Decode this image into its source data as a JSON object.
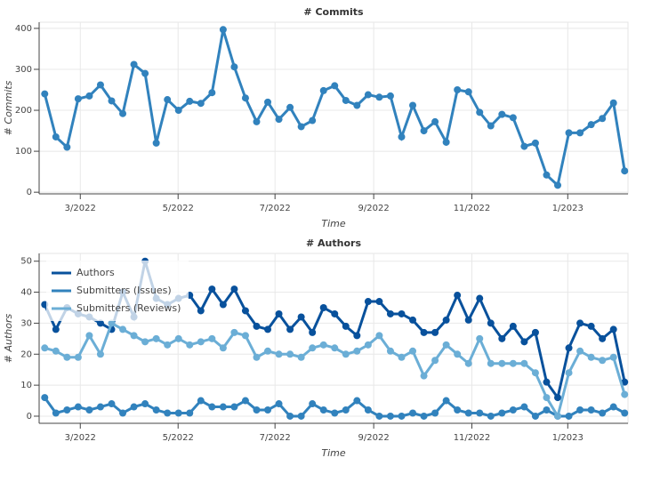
{
  "chart_data": [
    {
      "type": "line",
      "title": "# Commits",
      "x_label": "Time",
      "y_label": "# Commits",
      "x": [
        0,
        1,
        2,
        3,
        4,
        5,
        6,
        7,
        8,
        9,
        10,
        11,
        12,
        13,
        14,
        15,
        16,
        17,
        18,
        19,
        20,
        21,
        22,
        23,
        24,
        25,
        26,
        27,
        28,
        29,
        30,
        31,
        32,
        33,
        34,
        35,
        36,
        37,
        38,
        39,
        40,
        41,
        42,
        43,
        44,
        45,
        46,
        47,
        48,
        49,
        50,
        51,
        52
      ],
      "series": [
        {
          "name": "Commits",
          "color": "#3182bd",
          "values": [
            240,
            135,
            110,
            228,
            235,
            262,
            223,
            192,
            312,
            290,
            120,
            226,
            200,
            222,
            217,
            243,
            397,
            306,
            230,
            172,
            220,
            178,
            207,
            160,
            175,
            248,
            260,
            224,
            212,
            238,
            232,
            235,
            135,
            212,
            150,
            172,
            122,
            250,
            245,
            195,
            162,
            190,
            182,
            112,
            120,
            42,
            17,
            145,
            145,
            165,
            180,
            218,
            52
          ]
        }
      ],
      "xlim": [
        -0.5,
        52.3
      ],
      "ylim": [
        -4,
        415
      ],
      "xticks": [
        {
          "value": 3.19,
          "label": "3/2022"
        },
        {
          "value": 11.96,
          "label": "5/2022"
        },
        {
          "value": 20.65,
          "label": "7/2022"
        },
        {
          "value": 29.5,
          "label": "9/2022"
        },
        {
          "value": 38.3,
          "label": "11/2022"
        },
        {
          "value": 46.9,
          "label": "1/2023"
        }
      ],
      "yticks": [
        0,
        100,
        200,
        300,
        400
      ],
      "grid": true,
      "legend": false
    },
    {
      "type": "line",
      "title": "# Authors",
      "x_label": "Time",
      "y_label": "# Authors",
      "x": [
        0,
        1,
        2,
        3,
        4,
        5,
        6,
        7,
        8,
        9,
        10,
        11,
        12,
        13,
        14,
        15,
        16,
        17,
        18,
        19,
        20,
        21,
        22,
        23,
        24,
        25,
        26,
        27,
        28,
        29,
        30,
        31,
        32,
        33,
        34,
        35,
        36,
        37,
        38,
        39,
        40,
        41,
        42,
        43,
        44,
        45,
        46,
        47,
        48,
        49,
        50,
        51,
        52
      ],
      "series": [
        {
          "name": "Authors",
          "color": "#08519c",
          "values": [
            36,
            28,
            35,
            33,
            32,
            30,
            28,
            40,
            32,
            50,
            38,
            36,
            38,
            39,
            34,
            41,
            36,
            41,
            34,
            29,
            28,
            33,
            28,
            32,
            27,
            35,
            33,
            29,
            26,
            37,
            37,
            33,
            33,
            31,
            27,
            27,
            31,
            39,
            31,
            38,
            30,
            25,
            29,
            24,
            27,
            11,
            6,
            22,
            30,
            29,
            25,
            28,
            11
          ]
        },
        {
          "name": "Submitters (Issues)",
          "color": "#3182bd",
          "values": [
            6,
            1,
            2,
            3,
            2,
            3,
            4,
            1,
            3,
            4,
            2,
            1,
            1,
            1,
            5,
            3,
            3,
            3,
            5,
            2,
            2,
            4,
            0,
            0,
            4,
            2,
            1,
            2,
            5,
            2,
            0,
            0,
            0,
            1,
            0,
            1,
            5,
            2,
            1,
            1,
            0,
            1,
            2,
            3,
            0,
            2,
            0,
            0,
            2,
            2,
            1,
            3,
            1
          ]
        },
        {
          "name": "Submitters (Reviews)",
          "color": "#6baed6",
          "values": [
            22,
            21,
            19,
            19,
            26,
            20,
            30,
            28,
            26,
            24,
            25,
            23,
            25,
            23,
            24,
            25,
            22,
            27,
            26,
            19,
            21,
            20,
            20,
            19,
            22,
            23,
            22,
            20,
            21,
            23,
            26,
            21,
            19,
            21,
            13,
            18,
            23,
            20,
            17,
            25,
            17,
            17,
            17,
            17,
            14,
            6,
            0,
            14,
            21,
            19,
            18,
            19,
            7
          ]
        }
      ],
      "xlim": [
        -0.5,
        52.3
      ],
      "ylim": [
        -2.3,
        52.5
      ],
      "xticks": [
        {
          "value": 3.19,
          "label": "3/2022"
        },
        {
          "value": 11.96,
          "label": "5/2022"
        },
        {
          "value": 20.65,
          "label": "7/2022"
        },
        {
          "value": 29.5,
          "label": "9/2022"
        },
        {
          "value": 38.3,
          "label": "11/2022"
        },
        {
          "value": 46.9,
          "label": "1/2023"
        }
      ],
      "yticks": [
        0,
        10,
        20,
        30,
        40,
        50
      ],
      "grid": true,
      "legend": "top-left"
    }
  ]
}
